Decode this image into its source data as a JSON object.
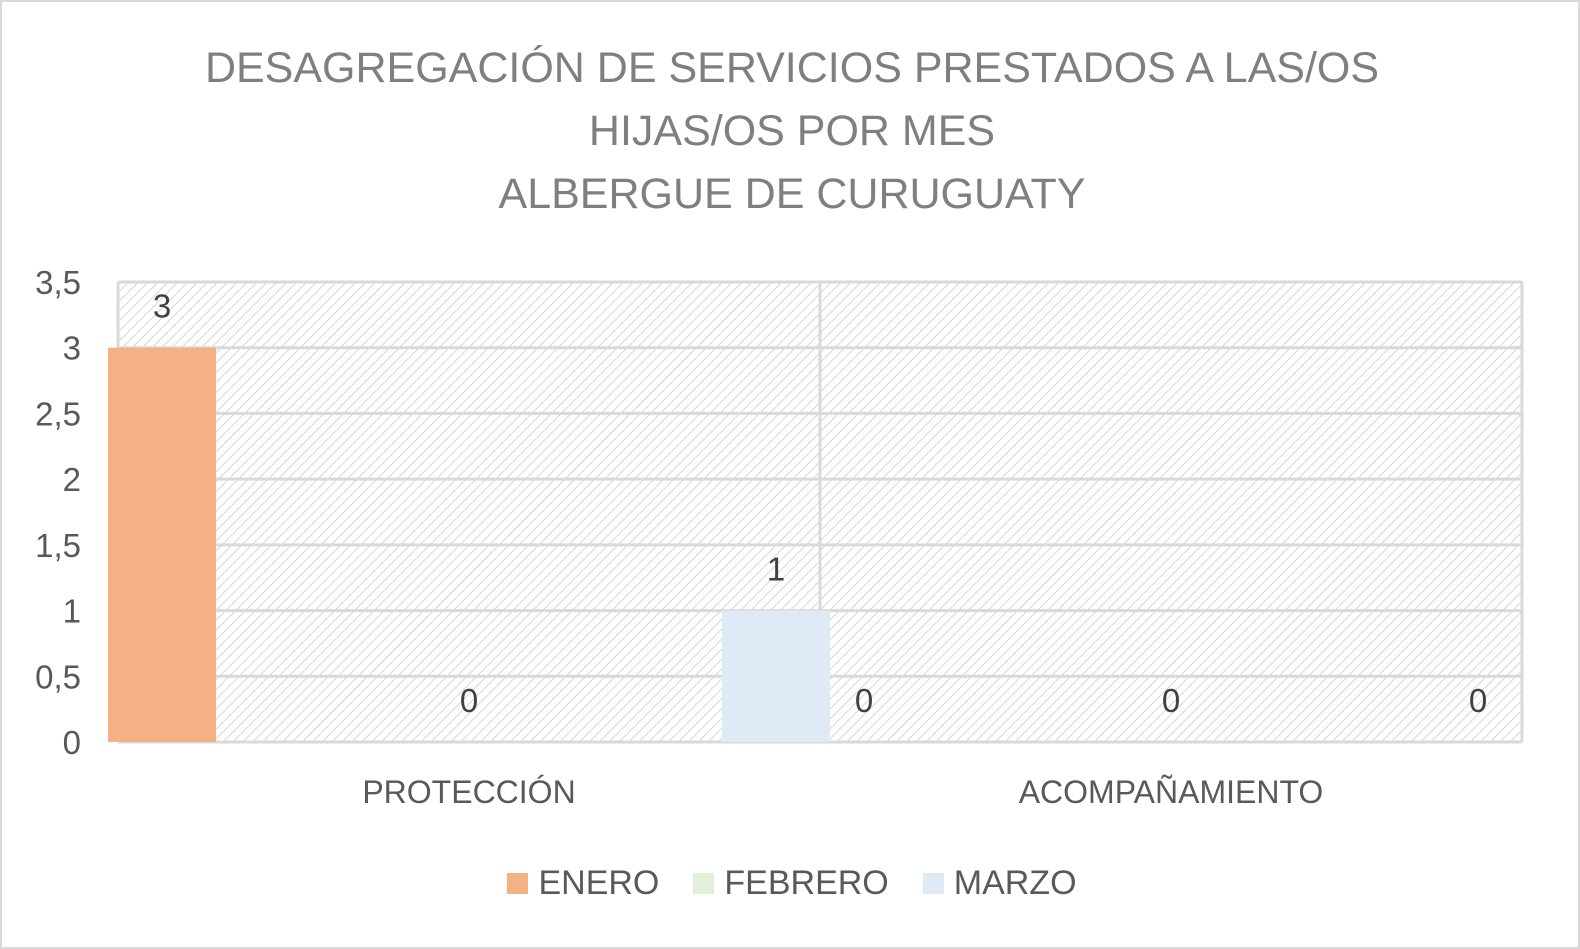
{
  "chart_data": {
    "type": "bar",
    "title_lines": [
      "DESAGREGACIÓN DE SERVICIOS PRESTADOS A LAS/OS",
      "HIJAS/OS POR MES",
      "ALBERGUE DE CURUGUATY"
    ],
    "categories": [
      "PROTECCIÓN",
      "ACOMPAÑAMIENTO"
    ],
    "series": [
      {
        "name": "ENERO",
        "values": [
          3,
          0
        ],
        "color": "#f4b183"
      },
      {
        "name": "FEBRERO",
        "values": [
          0,
          0
        ],
        "color": "#e2f0d9"
      },
      {
        "name": "MARZO",
        "values": [
          1,
          0
        ],
        "color": "#deebf7"
      }
    ],
    "data_labels": true,
    "ylim": [
      0,
      3.5
    ],
    "y_ticks": [
      "0",
      "0,5",
      "1",
      "1,5",
      "2",
      "2,5",
      "3",
      "3,5"
    ],
    "grid": true,
    "plot_background": "diagonal-hatch",
    "legend_position": "bottom"
  }
}
